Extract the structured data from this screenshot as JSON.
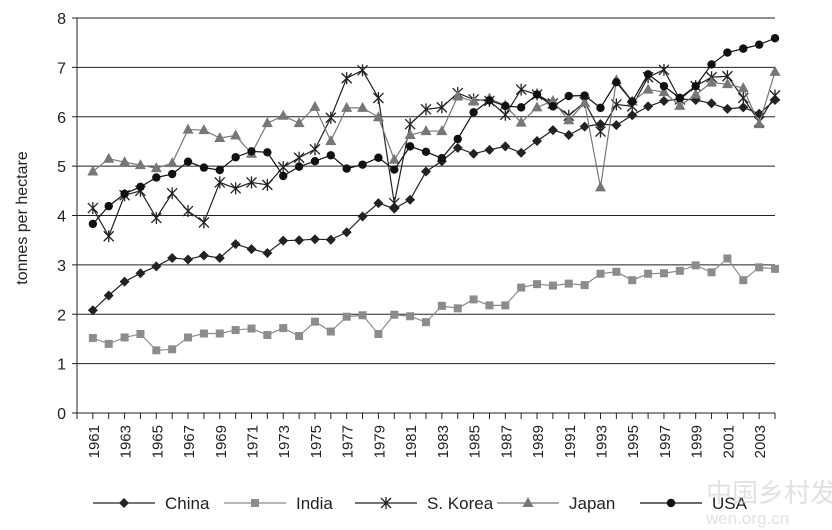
{
  "chart_data": {
    "type": "line",
    "title": "",
    "xlabel": "",
    "ylabel": "tonnes per hectare",
    "ylim": [
      0,
      8
    ],
    "yticks": [
      0,
      1,
      2,
      3,
      4,
      5,
      6,
      7,
      8
    ],
    "xlim": [
      1960,
      2004
    ],
    "xticks": [
      1961,
      1963,
      1965,
      1967,
      1969,
      1971,
      1973,
      1975,
      1977,
      1979,
      1981,
      1983,
      1985,
      1987,
      1989,
      1991,
      1993,
      1995,
      1997,
      1999,
      2001,
      2003
    ],
    "grid": "horizontal",
    "legend_position": "bottom",
    "x": [
      1961,
      1962,
      1963,
      1964,
      1965,
      1966,
      1967,
      1968,
      1969,
      1970,
      1971,
      1972,
      1973,
      1974,
      1975,
      1976,
      1977,
      1978,
      1979,
      1980,
      1981,
      1982,
      1983,
      1984,
      1985,
      1986,
      1987,
      1988,
      1989,
      1990,
      1991,
      1992,
      1993,
      1994,
      1995,
      1996,
      1997,
      1998,
      1999,
      2000,
      2001,
      2002,
      2003,
      2004
    ],
    "series": [
      {
        "name": "China",
        "marker": "diamond",
        "color": "#222222",
        "values": [
          2.08,
          2.38,
          2.66,
          2.83,
          2.97,
          3.14,
          3.11,
          3.19,
          3.14,
          3.42,
          3.32,
          3.24,
          3.49,
          3.5,
          3.52,
          3.51,
          3.66,
          3.98,
          4.25,
          4.14,
          4.32,
          4.89,
          5.1,
          5.37,
          5.25,
          5.33,
          5.4,
          5.27,
          5.51,
          5.73,
          5.63,
          5.8,
          5.85,
          5.83,
          6.03,
          6.21,
          6.32,
          6.36,
          6.34,
          6.27,
          6.16,
          6.19,
          6.06,
          6.34
        ]
      },
      {
        "name": "India",
        "marker": "square",
        "color": "#8c8c8c",
        "values": [
          1.52,
          1.4,
          1.53,
          1.6,
          1.27,
          1.29,
          1.53,
          1.61,
          1.61,
          1.68,
          1.71,
          1.58,
          1.72,
          1.56,
          1.85,
          1.65,
          1.95,
          1.98,
          1.6,
          1.99,
          1.96,
          1.84,
          2.17,
          2.12,
          2.3,
          2.18,
          2.18,
          2.54,
          2.61,
          2.58,
          2.62,
          2.59,
          2.82,
          2.86,
          2.69,
          2.82,
          2.83,
          2.88,
          2.99,
          2.85,
          3.13,
          2.69,
          2.95,
          2.92
        ]
      },
      {
        "name": "S. Korea",
        "marker": "star",
        "color": "#222222",
        "values": [
          4.15,
          3.58,
          4.41,
          4.5,
          3.95,
          4.45,
          4.09,
          3.86,
          4.67,
          4.55,
          4.67,
          4.62,
          4.98,
          5.17,
          5.34,
          5.98,
          6.78,
          6.94,
          6.38,
          4.25,
          5.85,
          6.15,
          6.19,
          6.48,
          6.35,
          6.32,
          6.04,
          6.55,
          6.45,
          6.27,
          6.02,
          6.3,
          5.7,
          6.25,
          6.21,
          6.8,
          6.95,
          6.35,
          6.62,
          6.8,
          6.82,
          6.38,
          5.9,
          6.43
        ]
      },
      {
        "name": "Japan",
        "marker": "triangle",
        "color": "#777777",
        "values": [
          4.89,
          5.15,
          5.08,
          5.02,
          4.96,
          5.06,
          5.74,
          5.73,
          5.57,
          5.62,
          5.25,
          5.87,
          6.02,
          5.87,
          6.2,
          5.51,
          6.18,
          6.18,
          5.99,
          5.13,
          5.63,
          5.71,
          5.71,
          6.41,
          6.31,
          6.37,
          6.23,
          5.88,
          6.19,
          6.32,
          5.93,
          6.28,
          4.57,
          6.74,
          6.31,
          6.55,
          6.5,
          6.22,
          6.45,
          6.69,
          6.66,
          6.58,
          5.85,
          6.91
        ]
      },
      {
        "name": "USA",
        "marker": "circle",
        "color": "#111111",
        "values": [
          3.83,
          4.19,
          4.44,
          4.58,
          4.77,
          4.84,
          5.09,
          4.97,
          4.92,
          5.18,
          5.3,
          5.28,
          4.8,
          4.99,
          5.1,
          5.22,
          4.95,
          5.03,
          5.17,
          4.93,
          5.4,
          5.29,
          5.16,
          5.55,
          6.09,
          6.33,
          6.22,
          6.19,
          6.45,
          6.21,
          6.42,
          6.43,
          6.18,
          6.7,
          6.31,
          6.86,
          6.62,
          6.38,
          6.62,
          7.06,
          7.3,
          7.38,
          7.46,
          7.59
        ]
      }
    ]
  },
  "watermark": {
    "line1": "中国乡村发现网",
    "line2": "wen.org.cn"
  }
}
